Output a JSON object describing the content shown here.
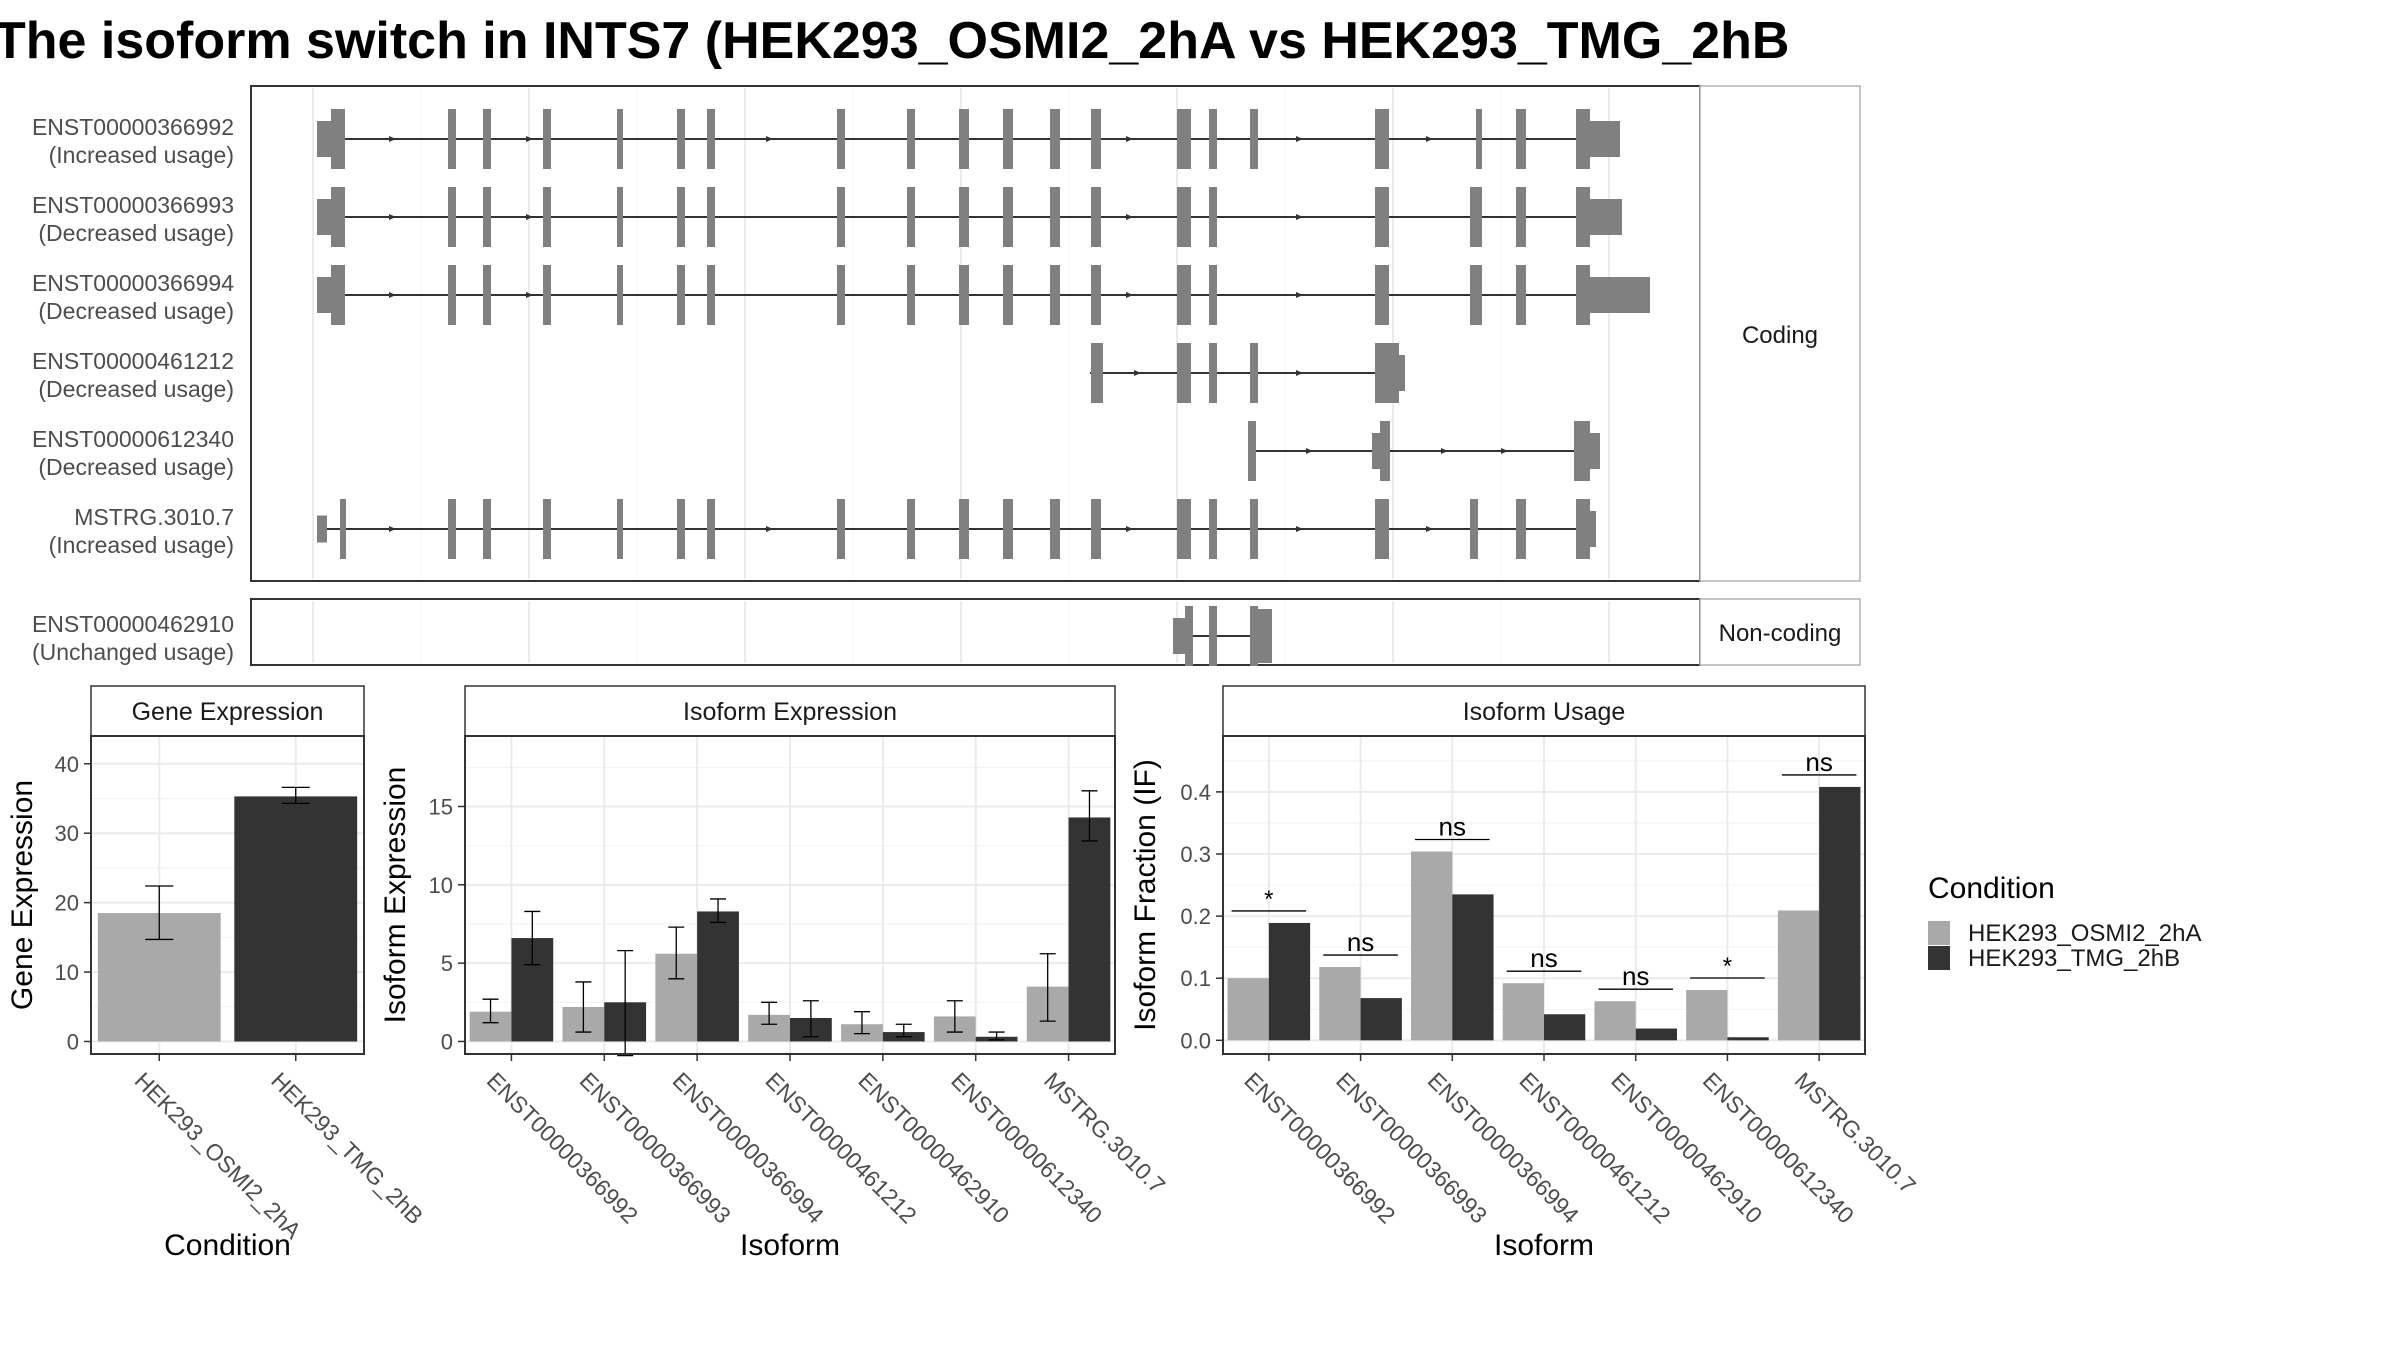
{
  "title": "The isoform switch in INTS7 (HEK293_OSMI2_2hA vs HEK293_TMG_2hB",
  "structure": {
    "coding_label": "Coding",
    "noncoding_label": "Non-coding",
    "isoforms": [
      {
        "id": "ENST00000366992",
        "usage": "(Increased usage)",
        "group": "coding"
      },
      {
        "id": "ENST00000366993",
        "usage": "(Decreased usage)",
        "group": "coding"
      },
      {
        "id": "ENST00000366994",
        "usage": "(Decreased usage)",
        "group": "coding"
      },
      {
        "id": "ENST00000461212",
        "usage": "(Decreased usage)",
        "group": "coding"
      },
      {
        "id": "ENST00000612340",
        "usage": "(Decreased usage)",
        "group": "coding"
      },
      {
        "id": "MSTRG.3010.7",
        "usage": "(Increased usage)",
        "group": "coding"
      },
      {
        "id": "ENST00000462910",
        "usage": "(Unchanged usage)",
        "group": "noncoding"
      }
    ]
  },
  "conditions": [
    "HEK293_OSMI2_2hA",
    "HEK293_TMG_2hB"
  ],
  "colors": {
    "cond1": "#a9a9a9",
    "cond2": "#333333",
    "exon": "#808080",
    "panel_border": "#333333",
    "strip_fill": "#ffffff",
    "grid": "#ebebeb"
  },
  "legend": {
    "title": "Condition",
    "entries": [
      "HEK293_OSMI2_2hA",
      "HEK293_TMG_2hB"
    ]
  },
  "chart_data": [
    {
      "type": "bar",
      "title": "Gene Expression",
      "xlabel": "Condition",
      "ylabel": "Gene Expression",
      "categories": [
        "HEK293_OSMI2_2hA",
        "HEK293_TMG_2hB"
      ],
      "values": [
        18.5,
        35.3
      ],
      "err_low": [
        14.7,
        34.3
      ],
      "err_high": [
        22.4,
        36.6
      ],
      "ylim": [
        -1.8,
        44
      ],
      "yticks": [
        "0",
        "10",
        "20",
        "30",
        "40"
      ]
    },
    {
      "type": "bar",
      "title": "Isoform Expression",
      "xlabel": "Isoform",
      "ylabel": "Isoform Expression",
      "categories": [
        "ENST00000366992",
        "ENST00000366993",
        "ENST00000366994",
        "ENST00000461212",
        "ENST00000462910",
        "ENST00000612340",
        "MSTRG.3010.7"
      ],
      "series": [
        {
          "name": "HEK293_OSMI2_2hA",
          "values": [
            1.9,
            2.2,
            5.6,
            1.7,
            1.1,
            1.6,
            3.5
          ],
          "err_low": [
            1.2,
            0.6,
            4.0,
            1.1,
            0.5,
            0.6,
            1.3
          ],
          "err_high": [
            2.7,
            3.8,
            7.3,
            2.5,
            1.9,
            2.6,
            5.6
          ]
        },
        {
          "name": "HEK293_TMG_2hB",
          "values": [
            6.6,
            2.5,
            8.3,
            1.5,
            0.6,
            0.3,
            14.3
          ],
          "err_low": [
            4.9,
            -0.9,
            7.6,
            0.3,
            0.3,
            0.1,
            12.8
          ],
          "err_high": [
            8.3,
            5.8,
            9.1,
            2.6,
            1.1,
            0.6,
            16.0
          ]
        }
      ],
      "ylim": [
        -0.8,
        19.5
      ],
      "yticks": [
        "0",
        "5",
        "10",
        "15"
      ]
    },
    {
      "type": "bar",
      "title": "Isoform Usage",
      "xlabel": "Isoform",
      "ylabel": "Isoform Fraction (IF)",
      "categories": [
        "ENST00000366992",
        "ENST00000366993",
        "ENST00000366994",
        "ENST00000461212",
        "ENST00000462910",
        "ENST00000612340",
        "MSTRG.3010.7"
      ],
      "series": [
        {
          "name": "HEK293_OSMI2_2hA",
          "values": [
            0.1,
            0.118,
            0.304,
            0.092,
            0.063,
            0.081,
            0.209
          ]
        },
        {
          "name": "HEK293_TMG_2hB",
          "values": [
            0.189,
            0.068,
            0.235,
            0.042,
            0.019,
            0.005,
            0.408
          ]
        }
      ],
      "significance": [
        "*",
        "ns",
        "ns",
        "ns",
        "ns",
        "*",
        "ns"
      ],
      "ylim": [
        -0.022,
        0.49
      ],
      "yticks": [
        "0.0",
        "0.1",
        "0.2",
        "0.3",
        "0.4"
      ]
    }
  ]
}
